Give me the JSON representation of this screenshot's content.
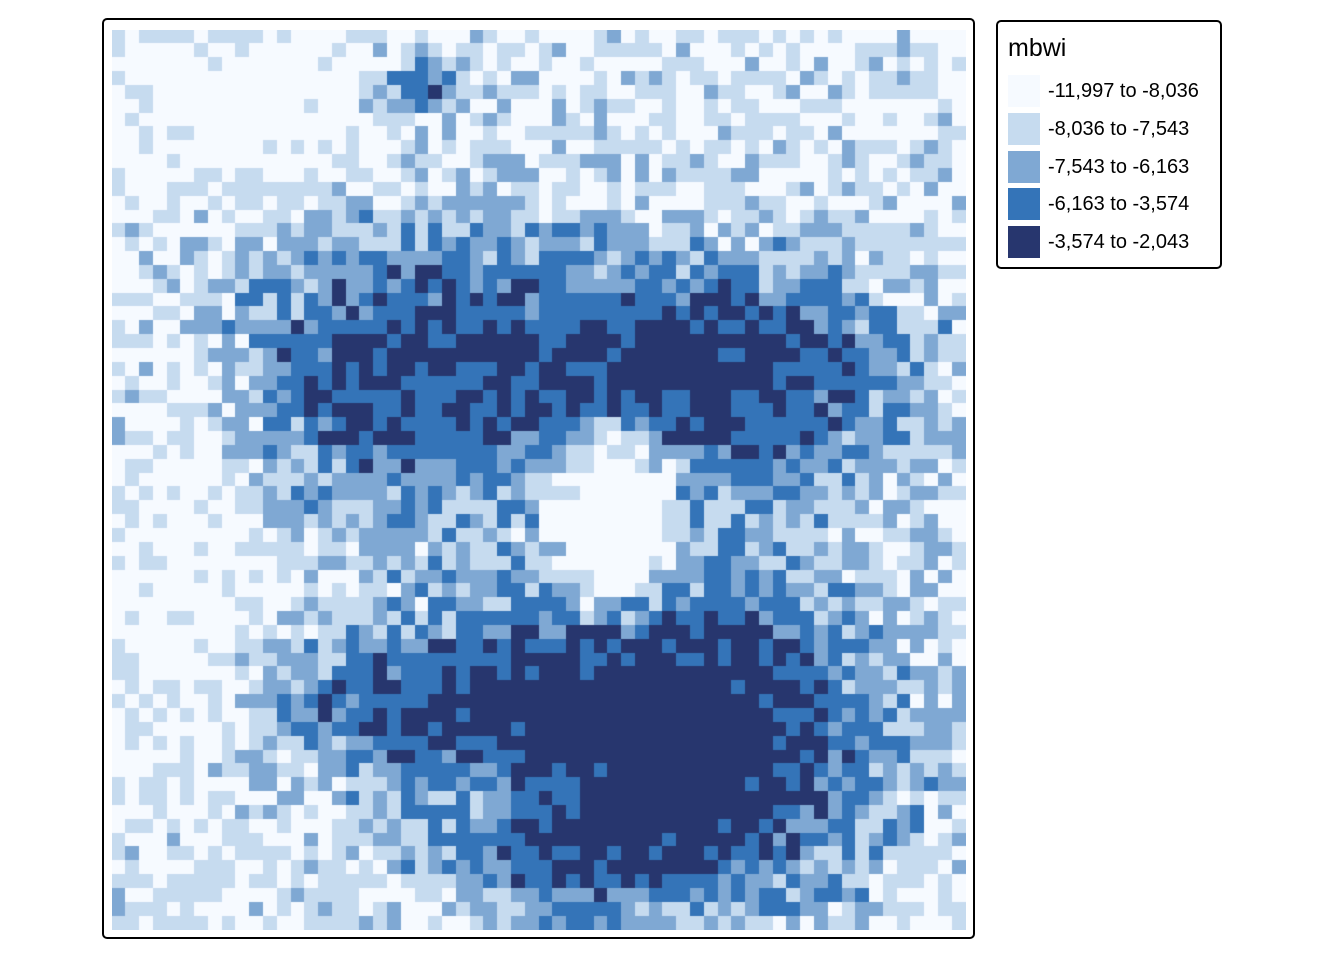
{
  "map": {
    "variable": "mbwi",
    "palette": [
      "#f6faff",
      "#c6dbef",
      "#7fa8d3",
      "#3474b8",
      "#27366e"
    ],
    "legend": [
      {
        "label": "-11,997 to -8,036",
        "color": "#f6faff"
      },
      {
        "label": "-8,036 to -7,543",
        "color": "#c6dbef"
      },
      {
        "label": "-7,543 to -6,163",
        "color": "#7fa8d3"
      },
      {
        "label": "-6,163 to -3,574",
        "color": "#3474b8"
      },
      {
        "label": "-3,574 to -2,043",
        "color": "#27366e"
      }
    ]
  }
}
